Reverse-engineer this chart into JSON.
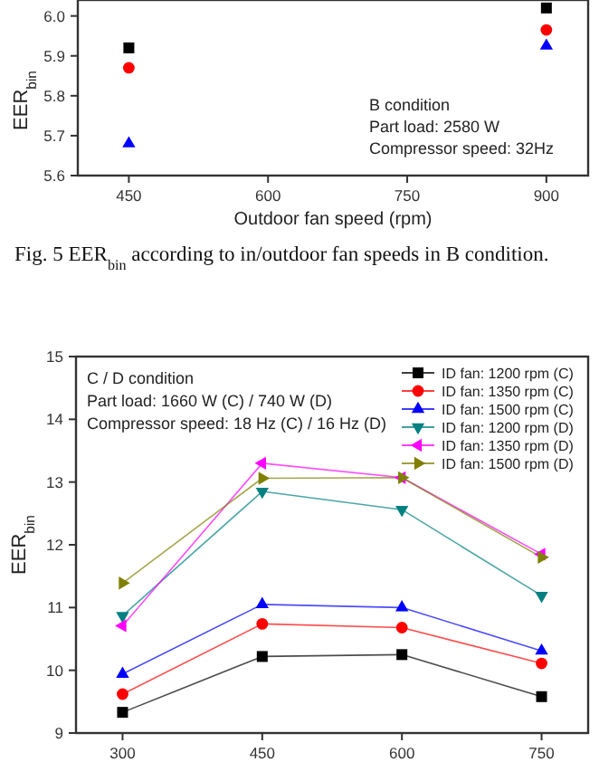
{
  "chart_data": [
    {
      "type": "scatter",
      "ylabel": "EER$_{bin}$",
      "xlabel": "Outdoor fan speed (rpm)",
      "x": [
        450,
        900
      ],
      "xlim": [
        395,
        945
      ],
      "xticks": [
        450,
        600,
        750,
        900
      ],
      "ylim": [
        5.6,
        6.04
      ],
      "yticks": [
        5.6,
        5.7,
        5.8,
        5.9,
        {
          "value": 6.0,
          "label": "6.0"
        }
      ],
      "grid": false,
      "legend": false,
      "series": [
        {
          "color": "#000000",
          "marker": "square",
          "values": [
            5.92,
            6.02
          ]
        },
        {
          "color": "#ff0000",
          "marker": "circle",
          "values": [
            5.87,
            5.965
          ]
        },
        {
          "color": "#0000ff",
          "marker": "triangle",
          "values": [
            5.68,
            5.925
          ]
        }
      ],
      "annotations": [
        "B condition",
        "Part load: 2580 W",
        "Compressor speed: 32Hz",
        "Fig. 5   EER$_{bin}$ according to in/outdoor fan speeds in B condition."
      ]
    },
    {
      "type": "line",
      "ylabel": "EER$_{bin}$",
      "x": [
        300,
        450,
        600,
        750
      ],
      "xlim": [
        250,
        800
      ],
      "xticks": [
        300,
        450,
        600,
        750
      ],
      "ylim": [
        9,
        15
      ],
      "yticks": [
        9,
        10,
        11,
        12,
        13,
        14,
        15
      ],
      "grid": false,
      "legend": "top right",
      "series": [
        {
          "name": "ID fan: 1200 rpm (C)",
          "color": "#000000",
          "marker": "square",
          "values": [
            9.33,
            10.22,
            10.25,
            9.58
          ]
        },
        {
          "name": "ID fan: 1350 rpm (C)",
          "color": "#ff0000",
          "marker": "circle",
          "values": [
            9.62,
            10.74,
            10.68,
            10.11
          ]
        },
        {
          "name": "ID fan: 1500 rpm (C)",
          "color": "#0000ff",
          "marker": "triangle",
          "values": [
            9.94,
            11.05,
            11.0,
            10.31
          ]
        },
        {
          "name": "ID fan: 1200 rpm (D)",
          "color": "#008080",
          "marker": "triangle-down",
          "values": [
            10.87,
            12.85,
            12.56,
            11.19
          ]
        },
        {
          "name": "ID fan: 1350 rpm (D)",
          "color": "#ff00ff",
          "marker": "triangle-left",
          "values": [
            10.71,
            13.3,
            13.07,
            11.85
          ]
        },
        {
          "name": "ID fan: 1500 rpm (D)",
          "color": "#808000",
          "marker": "triangle-right",
          "values": [
            11.39,
            13.06,
            13.07,
            11.8
          ]
        }
      ],
      "annotations": [
        "C / D condition",
        "Part load: 1660 W (C) / 740 W (D)",
        "Compressor speed: 18 Hz (C) / 16 Hz (D)"
      ]
    }
  ]
}
